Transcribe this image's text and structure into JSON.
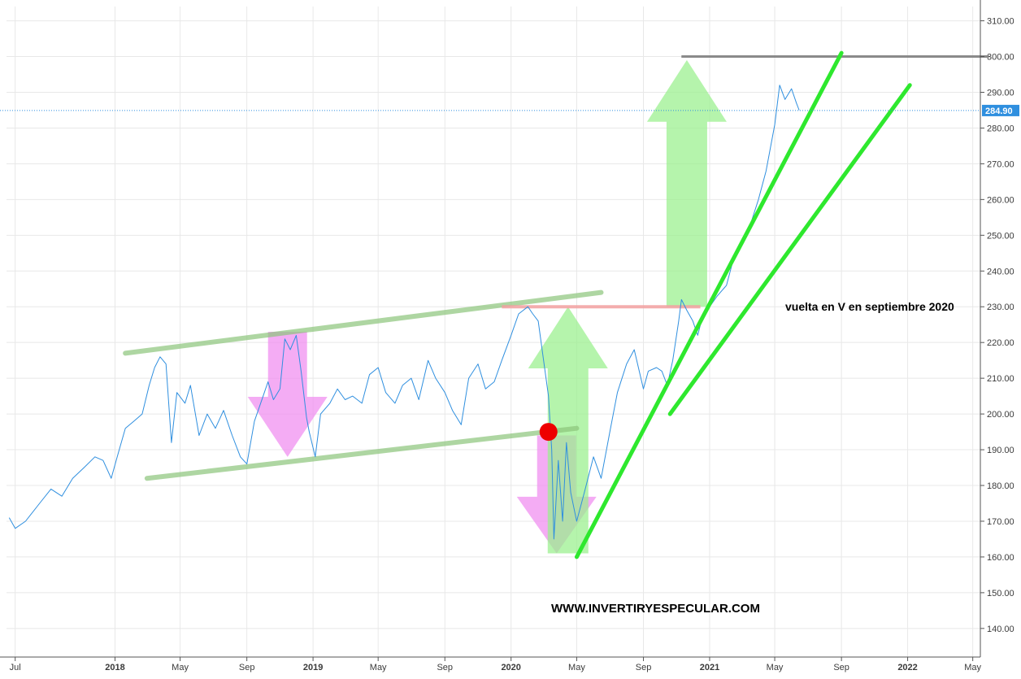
{
  "colors": {
    "price_line": "#2f8fdf",
    "grid": "#e8e8e8",
    "channel": "#8cc47a",
    "down_arrow": "#f08cf0",
    "up_arrow": "#98f08c",
    "trend_line": "#2ee82e",
    "resistance": "#8a8a8a",
    "breakout_level": "#f2a0a0",
    "red_marker": "#ee0000",
    "last_price_bg": "#2f8fdf"
  },
  "annotations": {
    "v_recovery_label": "vuelta en V en septiembre 2020",
    "watermark": "WWW.INVERTIRYESPECULAR.COM"
  },
  "chart_data": {
    "type": "line",
    "title": "",
    "xlabel": "",
    "ylabel": "",
    "x_axis": {
      "range": [
        "2017-06-15",
        "2022-05-15"
      ],
      "ticks": [
        {
          "label": "Jul",
          "date": "2017-07-01",
          "year_marker": false
        },
        {
          "label": "2018",
          "date": "2018-01-01",
          "year_marker": true
        },
        {
          "label": "May",
          "date": "2018-05-01",
          "year_marker": false
        },
        {
          "label": "Sep",
          "date": "2018-09-01",
          "year_marker": false
        },
        {
          "label": "2019",
          "date": "2019-01-01",
          "year_marker": true
        },
        {
          "label": "May",
          "date": "2019-05-01",
          "year_marker": false
        },
        {
          "label": "Sep",
          "date": "2019-09-01",
          "year_marker": false
        },
        {
          "label": "2020",
          "date": "2020-01-01",
          "year_marker": true
        },
        {
          "label": "May",
          "date": "2020-05-01",
          "year_marker": false
        },
        {
          "label": "Sep",
          "date": "2020-09-01",
          "year_marker": false
        },
        {
          "label": "2021",
          "date": "2021-01-01",
          "year_marker": true
        },
        {
          "label": "May",
          "date": "2021-05-01",
          "year_marker": false
        },
        {
          "label": "Sep",
          "date": "2021-09-01",
          "year_marker": false
        },
        {
          "label": "2022",
          "date": "2022-01-01",
          "year_marker": true
        },
        {
          "label": "May",
          "date": "2022-05-01",
          "year_marker": false
        }
      ]
    },
    "y_axis": {
      "range": [
        132,
        314
      ],
      "ticks": [
        "140.00",
        "150.00",
        "160.00",
        "170.00",
        "180.00",
        "190.00",
        "200.00",
        "210.00",
        "220.00",
        "230.00",
        "240.00",
        "250.00",
        "260.00",
        "270.00",
        "280.00",
        "290.00",
        "300.00",
        "310.00"
      ],
      "grid": true
    },
    "last_price": {
      "value": 284.9,
      "label": "284.90"
    },
    "series": [
      {
        "name": "",
        "points": [
          [
            "2017-06-20",
            171
          ],
          [
            "2017-07-01",
            168
          ],
          [
            "2017-07-20",
            170
          ],
          [
            "2017-08-15",
            175
          ],
          [
            "2017-09-05",
            179
          ],
          [
            "2017-09-25",
            177
          ],
          [
            "2017-10-15",
            182
          ],
          [
            "2017-11-05",
            185
          ],
          [
            "2017-11-25",
            188
          ],
          [
            "2017-12-10",
            187
          ],
          [
            "2017-12-25",
            182
          ],
          [
            "2018-01-05",
            188
          ],
          [
            "2018-01-20",
            196
          ],
          [
            "2018-02-05",
            198
          ],
          [
            "2018-02-20",
            200
          ],
          [
            "2018-03-05",
            208
          ],
          [
            "2018-03-15",
            213
          ],
          [
            "2018-03-25",
            216
          ],
          [
            "2018-04-05",
            214
          ],
          [
            "2018-04-15",
            192
          ],
          [
            "2018-04-25",
            206
          ],
          [
            "2018-05-10",
            203
          ],
          [
            "2018-05-20",
            208
          ],
          [
            "2018-06-05",
            194
          ],
          [
            "2018-06-20",
            200
          ],
          [
            "2018-07-05",
            196
          ],
          [
            "2018-07-20",
            201
          ],
          [
            "2018-08-05",
            194
          ],
          [
            "2018-08-20",
            188
          ],
          [
            "2018-09-01",
            186
          ],
          [
            "2018-09-15",
            198
          ],
          [
            "2018-10-01",
            205
          ],
          [
            "2018-10-10",
            209
          ],
          [
            "2018-10-20",
            204
          ],
          [
            "2018-11-01",
            207
          ],
          [
            "2018-11-10",
            221
          ],
          [
            "2018-11-20",
            218
          ],
          [
            "2018-12-01",
            222
          ],
          [
            "2018-12-10",
            212
          ],
          [
            "2018-12-20",
            199
          ],
          [
            "2018-12-25",
            195
          ],
          [
            "2019-01-05",
            188
          ],
          [
            "2019-01-15",
            200
          ],
          [
            "2019-02-01",
            203
          ],
          [
            "2019-02-15",
            207
          ],
          [
            "2019-03-01",
            204
          ],
          [
            "2019-03-15",
            205
          ],
          [
            "2019-04-01",
            203
          ],
          [
            "2019-04-15",
            211
          ],
          [
            "2019-05-01",
            213
          ],
          [
            "2019-05-15",
            206
          ],
          [
            "2019-06-01",
            203
          ],
          [
            "2019-06-15",
            208
          ],
          [
            "2019-07-01",
            210
          ],
          [
            "2019-07-15",
            204
          ],
          [
            "2019-08-01",
            215
          ],
          [
            "2019-08-15",
            210
          ],
          [
            "2019-09-01",
            206
          ],
          [
            "2019-09-15",
            201
          ],
          [
            "2019-10-01",
            197
          ],
          [
            "2019-10-15",
            210
          ],
          [
            "2019-11-01",
            214
          ],
          [
            "2019-11-15",
            207
          ],
          [
            "2019-12-01",
            209
          ],
          [
            "2019-12-15",
            215
          ],
          [
            "2020-01-01",
            222
          ],
          [
            "2020-01-15",
            228
          ],
          [
            "2020-02-01",
            230
          ],
          [
            "2020-02-10",
            228
          ],
          [
            "2020-02-20",
            226
          ],
          [
            "2020-03-01",
            215
          ],
          [
            "2020-03-10",
            205
          ],
          [
            "2020-03-16",
            190
          ],
          [
            "2020-03-20",
            165
          ],
          [
            "2020-03-28",
            187
          ],
          [
            "2020-04-05",
            170
          ],
          [
            "2020-04-12",
            192
          ],
          [
            "2020-04-20",
            178
          ],
          [
            "2020-05-01",
            170
          ],
          [
            "2020-05-15",
            178
          ],
          [
            "2020-06-01",
            188
          ],
          [
            "2020-06-15",
            182
          ],
          [
            "2020-07-01",
            195
          ],
          [
            "2020-07-15",
            206
          ],
          [
            "2020-08-01",
            214
          ],
          [
            "2020-08-15",
            218
          ],
          [
            "2020-09-01",
            207
          ],
          [
            "2020-09-10",
            212
          ],
          [
            "2020-09-25",
            213
          ],
          [
            "2020-10-05",
            212
          ],
          [
            "2020-10-15",
            208
          ],
          [
            "2020-10-25",
            215
          ],
          [
            "2020-11-05",
            226
          ],
          [
            "2020-11-10",
            232
          ],
          [
            "2020-11-20",
            229
          ],
          [
            "2020-12-01",
            226
          ],
          [
            "2020-12-10",
            222
          ],
          [
            "2020-12-20",
            228
          ],
          [
            "2021-01-01",
            230
          ],
          [
            "2021-01-15",
            233
          ],
          [
            "2021-02-01",
            236
          ],
          [
            "2021-02-15",
            244
          ],
          [
            "2021-03-01",
            248
          ],
          [
            "2021-03-15",
            252
          ],
          [
            "2021-04-01",
            260
          ],
          [
            "2021-04-15",
            268
          ],
          [
            "2021-05-01",
            281
          ],
          [
            "2021-05-10",
            292
          ],
          [
            "2021-05-20",
            288
          ],
          [
            "2021-06-01",
            291
          ],
          [
            "2021-06-10",
            287
          ],
          [
            "2021-06-15",
            285
          ]
        ]
      }
    ]
  },
  "overlays": {
    "channel_upper": [
      [
        "2018-01-20",
        217
      ],
      [
        "2020-06-15",
        234
      ]
    ],
    "channel_lower": [
      [
        "2018-03-01",
        182
      ],
      [
        "2020-05-01",
        196
      ]
    ],
    "trend_lines": [
      {
        "from": [
          "2020-05-01",
          160
        ],
        "to": [
          "2021-09-01",
          301
        ]
      },
      {
        "from": [
          "2020-10-20",
          200
        ],
        "to": [
          "2022-01-05",
          292
        ]
      }
    ],
    "resistance": {
      "from": "2020-11-10",
      "to": "2022-05-31",
      "value": 300
    },
    "breakout_level": {
      "from": "2019-12-15",
      "to": "2020-12-15",
      "value": 230
    },
    "red_marker": [
      "2020-03-10",
      195
    ],
    "down_arrows": [
      {
        "center": "2018-11-15",
        "top": 223,
        "bottom": 188
      },
      {
        "center": "2020-03-25",
        "top": 194,
        "bottom": 161
      }
    ],
    "up_arrows": [
      {
        "center": "2020-04-15",
        "top": 230,
        "bottom": 161
      },
      {
        "center": "2020-11-20",
        "top": 299,
        "bottom": 230
      }
    ]
  }
}
